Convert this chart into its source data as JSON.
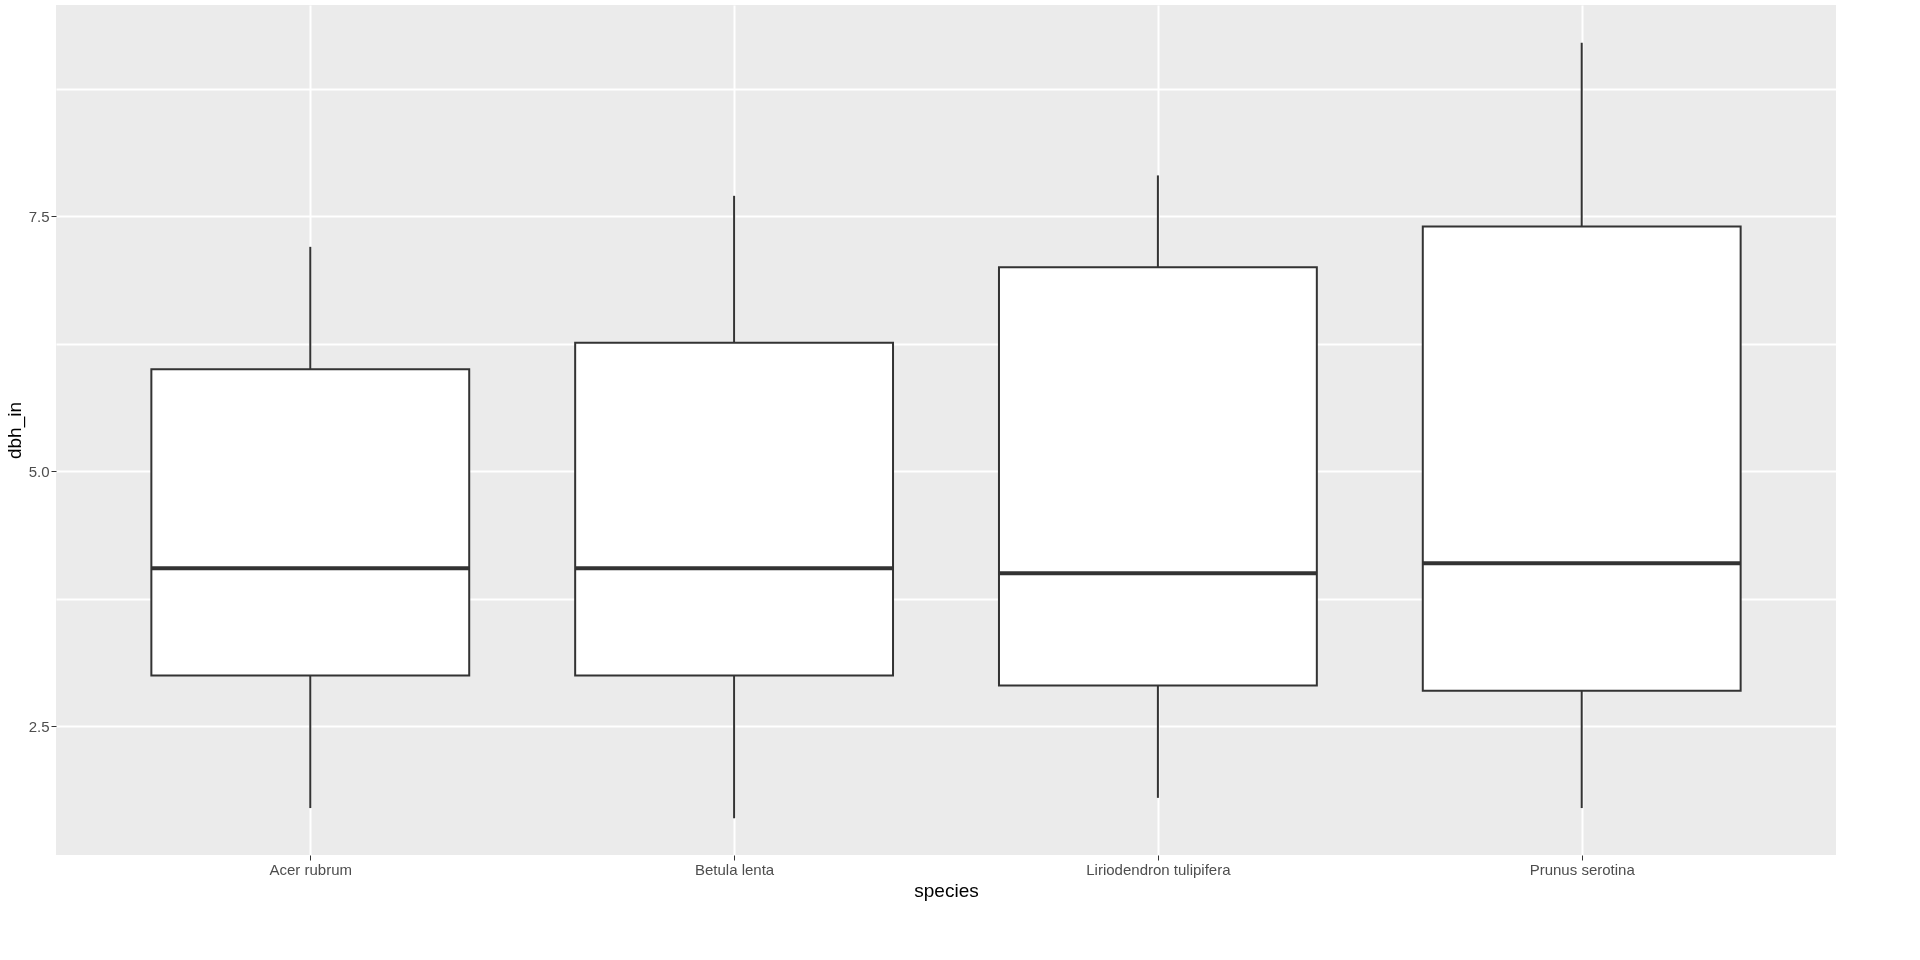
{
  "chart_data": {
    "type": "box",
    "xlabel": "species",
    "ylabel": "dbh_in",
    "categories": [
      "Acer rubrum",
      "Betula lenta",
      "Liriodendron tulipifera",
      "Prunus serotina"
    ],
    "boxes": [
      {
        "low": 1.7,
        "q1": 3.0,
        "median": 4.05,
        "q3": 6.0,
        "high": 7.2
      },
      {
        "low": 1.6,
        "q1": 3.0,
        "median": 4.05,
        "q3": 6.26,
        "high": 7.7
      },
      {
        "low": 1.8,
        "q1": 2.9,
        "median": 4.0,
        "q3": 7.0,
        "high": 7.9
      },
      {
        "low": 1.7,
        "q1": 2.85,
        "median": 4.1,
        "q3": 7.4,
        "high": 9.2
      }
    ],
    "ylim": [
      1.24,
      9.57
    ],
    "yticks": [
      {
        "value": 2.5,
        "label": "2.5"
      },
      {
        "value": 5.0,
        "label": "5.0"
      },
      {
        "value": 7.5,
        "label": "7.5"
      },
      {
        "value": 3.75,
        "label": null
      },
      {
        "value": 6.25,
        "label": null
      },
      {
        "value": 8.75,
        "label": null
      }
    ],
    "grid": true
  }
}
